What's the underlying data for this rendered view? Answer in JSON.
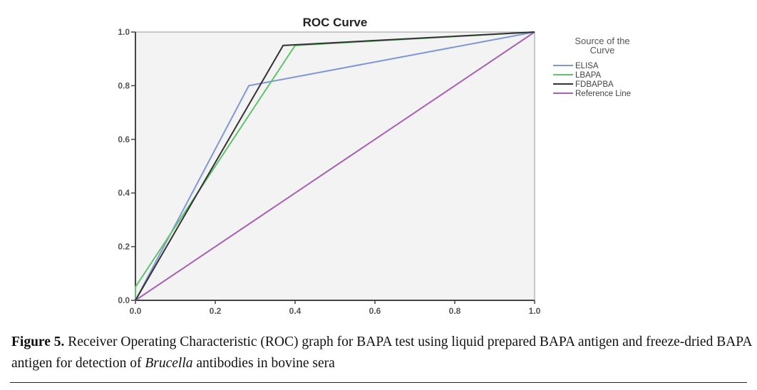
{
  "chart_data": {
    "type": "line",
    "title": "ROC Curve",
    "xlabel": "",
    "ylabel": "",
    "xlim": [
      0,
      1
    ],
    "ylim": [
      0,
      1
    ],
    "x_ticks": [
      "0.0",
      "0.2",
      "0.4",
      "0.6",
      "0.8",
      "1.0"
    ],
    "y_ticks": [
      "0.0",
      "0.2",
      "0.4",
      "0.6",
      "0.8",
      "1.0"
    ],
    "grid": false,
    "legend_title": "Source of the Curve",
    "legend_title_lines": [
      "Source of the",
      "Curve"
    ],
    "legend_placement": "right",
    "series": [
      {
        "name": "ELISA",
        "color": "#7f97d6",
        "points": [
          [
            0,
            0
          ],
          [
            0.284,
            0.8
          ],
          [
            1,
            1
          ]
        ]
      },
      {
        "name": "LBAPA",
        "color": "#5fc46b",
        "points": [
          [
            0,
            0
          ],
          [
            0,
            0.05
          ],
          [
            0.4,
            0.95
          ],
          [
            1,
            1
          ]
        ]
      },
      {
        "name": "FDBAPBA",
        "color": "#333333",
        "points": [
          [
            0,
            0
          ],
          [
            0.37,
            0.95
          ],
          [
            1,
            1
          ]
        ]
      },
      {
        "name": "Reference Line",
        "color": "#a860b4",
        "points": [
          [
            0,
            0
          ],
          [
            1,
            1
          ]
        ]
      }
    ],
    "plot_background": "#f3f3f3"
  },
  "caption": {
    "label": "Figure 5.",
    "text_before": " Receiver Operating Characteristic (ROC) graph for BAPA test using liquid prepared BAPA antigen and freeze-dried BAPA antigen for detection of ",
    "italic": "Brucella",
    "text_after": " antibodies in bovine sera"
  }
}
